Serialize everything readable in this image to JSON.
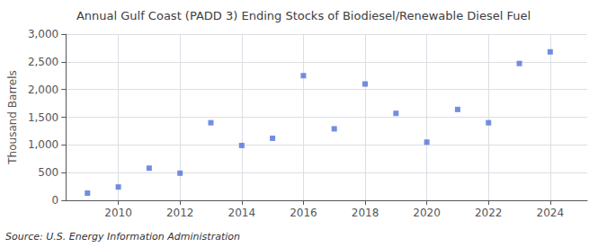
{
  "chart_data": {
    "type": "scatter",
    "title": "Annual Gulf Coast (PADD 3) Ending Stocks of Biodiesel/Renewable Diesel Fuel",
    "y_label": "Thousand Barrels",
    "source": "Source: U.S. Energy Information Administration",
    "x": [
      2009,
      2010,
      2011,
      2012,
      2013,
      2014,
      2015,
      2016,
      2017,
      2018,
      2019,
      2020,
      2021,
      2022,
      2023,
      2024
    ],
    "values": [
      130,
      240,
      580,
      490,
      1400,
      990,
      1120,
      2250,
      1290,
      2100,
      1570,
      1050,
      1640,
      1400,
      2470,
      2680
    ],
    "marker": "square",
    "xlim": [
      2008.3,
      2025.2
    ],
    "xticks": [
      2010,
      2012,
      2014,
      2016,
      2018,
      2020,
      2022,
      2024
    ],
    "ylim": [
      0,
      3000
    ],
    "yticks": [
      0,
      500,
      {
        "value": 1000,
        "label": "1,000"
      },
      {
        "value": 1500,
        "label": "1,500"
      },
      {
        "value": 2000,
        "label": "2,000"
      },
      {
        "value": 2500,
        "label": "2,500"
      },
      {
        "value": 3000,
        "label": "3,000"
      }
    ],
    "grid": true
  }
}
